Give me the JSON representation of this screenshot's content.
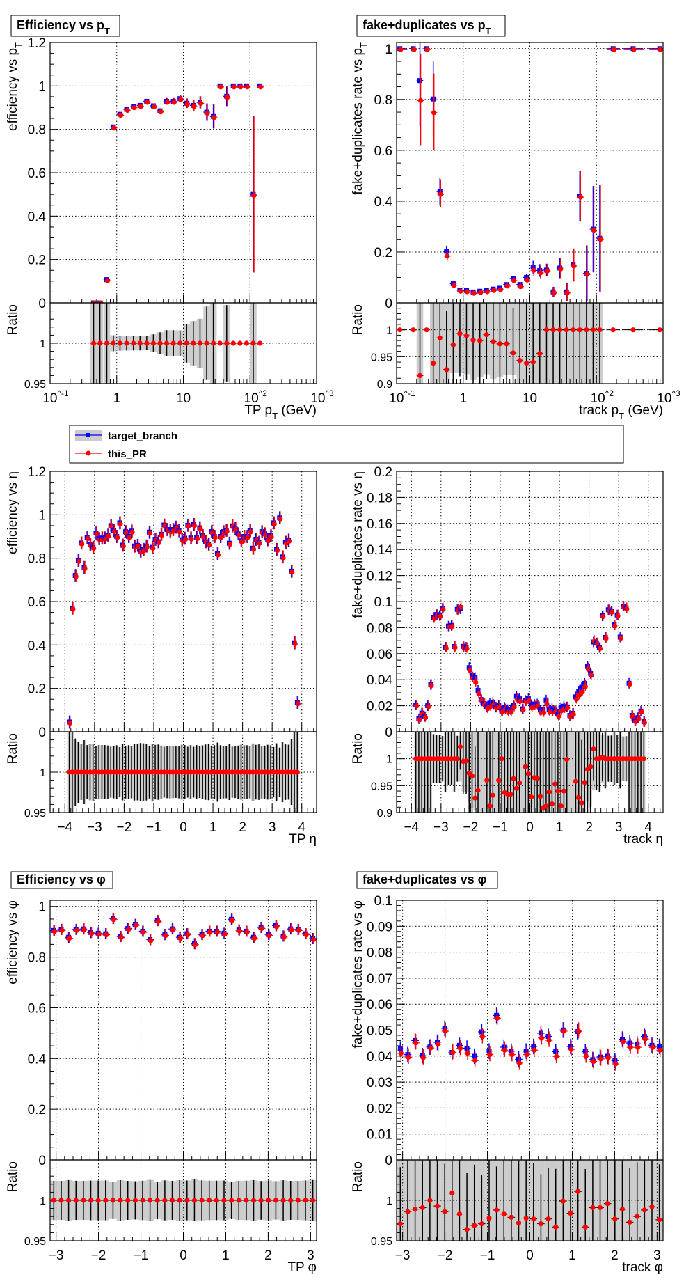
{
  "legend": {
    "entries": [
      {
        "label": "target_branch",
        "color": "#0000ff",
        "band_color": "#cccccc",
        "marker": "square"
      },
      {
        "label": "this_PR",
        "color": "#ff0000",
        "marker": "circle"
      }
    ]
  },
  "colors": {
    "target": "#0000ff",
    "this_PR": "#ff0000",
    "band": "#cccccc",
    "ratio_error": "#000000"
  },
  "chart_data": [
    {
      "type": "scatter",
      "title": {
        "text": "Efficiency vs p",
        "sub": "T"
      },
      "ylabel": {
        "text": "efficiency vs p",
        "sub": "T"
      },
      "xlabel": {
        "text": "TP p",
        "sub": "T",
        "after": " (GeV)"
      },
      "ratio_ylabel": "Ratio",
      "xscale": "log",
      "xlim": [
        0.1,
        1000
      ],
      "xticks": [
        0.1,
        1,
        10,
        100,
        1000
      ],
      "xtick_labels": [
        "10^-1",
        "1",
        "10",
        "10^2",
        "10^3"
      ],
      "ylim": [
        0,
        1.2
      ],
      "yticks": [
        0,
        0.2,
        0.4,
        0.6,
        0.8,
        1,
        1.2
      ],
      "ytick_labels": [
        "0",
        "0.2",
        "0.4",
        "0.6",
        "0.8",
        "1",
        "1.2"
      ],
      "ratio_ylim": [
        0.95,
        1.05
      ],
      "ratio_yticks": [
        0.95,
        1
      ],
      "ratio_ytick_labels": [
        "0.95",
        "1"
      ],
      "grid": true,
      "x": [
        0.45,
        0.56,
        0.71,
        0.89,
        1.12,
        1.41,
        1.78,
        2.24,
        2.82,
        3.55,
        4.47,
        5.62,
        7.08,
        8.91,
        11.2,
        14.1,
        17.8,
        22.4,
        28.2,
        35.5,
        44.7,
        56.2,
        70.8,
        89.1,
        112,
        141
      ],
      "this_PR": [
        0,
        0,
        0.107,
        0.811,
        0.869,
        0.892,
        0.904,
        0.91,
        0.929,
        0.908,
        0.885,
        0.929,
        0.929,
        0.941,
        0.92,
        0.91,
        0.924,
        0.879,
        0.859,
        1,
        0.952,
        1,
        1,
        1,
        0.5,
        1
      ],
      "err": [
        0,
        0,
        0.006,
        0.008,
        0.008,
        0.008,
        0.008,
        0.008,
        0.008,
        0.01,
        0.012,
        0.015,
        0.015,
        0.015,
        0.022,
        0.025,
        0.028,
        0.04,
        0.055,
        0,
        0.045,
        0,
        0,
        0,
        0.36,
        0
      ],
      "ratio": [
        1,
        1,
        1,
        1,
        1,
        1,
        1,
        1,
        1,
        1,
        1,
        1,
        1,
        1,
        1,
        1,
        1,
        1,
        1,
        1,
        1,
        1,
        1,
        1,
        1,
        1
      ]
    },
    {
      "type": "scatter",
      "title": {
        "text": "fake+duplicates vs p",
        "sub": "T"
      },
      "ylabel": {
        "text": "fake+duplicates rate vs p",
        "sub": "T"
      },
      "xlabel": {
        "text": "track p",
        "sub": "T",
        "after": " (GeV)"
      },
      "ratio_ylabel": "Ratio",
      "xscale": "log",
      "xlim": [
        0.1,
        1000
      ],
      "xticks": [
        0.1,
        1,
        10,
        100,
        1000
      ],
      "xtick_labels": [
        "10^-1",
        "1",
        "10",
        "10^2",
        "10^3"
      ],
      "ylim": [
        0,
        1.024
      ],
      "yticks": [
        0,
        0.2,
        0.4,
        0.6,
        0.8,
        1
      ],
      "ytick_labels": [
        "0",
        "0.2",
        "0.4",
        "0.6",
        "0.8",
        "1"
      ],
      "ratio_ylim": [
        0.9,
        1.05
      ],
      "ratio_yticks": [
        0.9,
        0.95,
        1
      ],
      "ratio_ytick_labels": [
        "0.9",
        "0.95",
        "1"
      ],
      "grid": true,
      "x": [
        0.112,
        0.178,
        0.224,
        0.282,
        0.355,
        0.447,
        0.562,
        0.708,
        0.891,
        1.12,
        1.41,
        1.78,
        2.24,
        2.82,
        3.55,
        4.47,
        5.62,
        7.08,
        8.91,
        11.2,
        14.1,
        17.8,
        22.4,
        28.2,
        35.5,
        44.7,
        56.2,
        70.8,
        89.1,
        112,
        178,
        355,
        891
      ],
      "this_PR": [
        1,
        1,
        0.8,
        1,
        0.752,
        0.431,
        0.188,
        0.073,
        0.05,
        0.048,
        0.042,
        0.045,
        0.048,
        0.053,
        0.056,
        0.07,
        0.092,
        0.068,
        0.094,
        0.132,
        0.122,
        0.129,
        0.043,
        0.137,
        0.043,
        0.149,
        0.42,
        0.116,
        0.29,
        0.254,
        1,
        1,
        1
      ],
      "err": [
        0,
        0,
        0.18,
        0,
        0.15,
        0.055,
        0.022,
        0.006,
        0.004,
        0.004,
        0.004,
        0.004,
        0.004,
        0.005,
        0.005,
        0.006,
        0.008,
        0.01,
        0.012,
        0.025,
        0.025,
        0.025,
        0.02,
        0.04,
        0.035,
        0.065,
        0.1,
        0.11,
        0.17,
        0.21,
        0,
        0,
        0
      ],
      "ratio": [
        1,
        1,
        0.915,
        1,
        0.938,
        0.985,
        0.926,
        0.972,
        0.993,
        0.989,
        0.981,
        0.98,
        0.991,
        0.978,
        0.974,
        0.974,
        0.957,
        0.943,
        0.938,
        0.94,
        0.956,
        1,
        1,
        1,
        1,
        1,
        1,
        1,
        1,
        1,
        1,
        1,
        1
      ]
    },
    {
      "type": "scatter",
      "ylabel": {
        "text": "efficiency vs  η",
        "sub": ""
      },
      "xlabel": {
        "text": "TP η",
        "sub": "",
        "after": ""
      },
      "ratio_ylabel": "Ratio",
      "xscale": "linear",
      "xlim": [
        -4.5,
        4.5
      ],
      "xticks": [
        -4,
        -3,
        -2,
        -1,
        0,
        1,
        2,
        3,
        4
      ],
      "xtick_labels": [
        "−4",
        "−3",
        "−2",
        "−1",
        "0",
        "1",
        "2",
        "3",
        "4"
      ],
      "ylim": [
        0,
        1.2
      ],
      "yticks": [
        0,
        0.2,
        0.4,
        0.6,
        0.8,
        1,
        1.2
      ],
      "ytick_labels": [
        "0",
        "0.2",
        "0.4",
        "0.6",
        "0.8",
        "1",
        "1.2"
      ],
      "ratio_ylim": [
        0.95,
        1.05
      ],
      "ratio_yticks": [
        0.95,
        1
      ],
      "ratio_ytick_labels": [
        "0.95",
        "1"
      ],
      "grid": true,
      "x_bin_width": 0.1,
      "x_first": -3.85,
      "this_PR": [
        0.045,
        0.57,
        0.72,
        0.79,
        0.87,
        0.757,
        0.895,
        0.862,
        0.85,
        0.916,
        0.89,
        0.893,
        0.893,
        0.906,
        0.95,
        0.927,
        0.9,
        0.963,
        0.86,
        0.922,
        0.9,
        0.925,
        0.856,
        0.859,
        0.833,
        0.84,
        0.856,
        0.92,
        0.85,
        0.887,
        0.876,
        0.91,
        0.953,
        0.932,
        0.926,
        0.932,
        0.943,
        0.926,
        0.885,
        0.892,
        0.952,
        0.893,
        0.955,
        0.895,
        0.94,
        0.903,
        0.876,
        0.865,
        0.922,
        0.9,
        0.82,
        0.9,
        0.922,
        0.929,
        0.869,
        0.949,
        0.936,
        0.912,
        0.88,
        0.9,
        0.9,
        0.926,
        0.846,
        0.887,
        0.873,
        0.922,
        0.912,
        0.885,
        0.903,
        0.963,
        0.84,
        0.986,
        0.806,
        0.873,
        0.883,
        0.74,
        0.41,
        0.134
      ],
      "err": 0.03,
      "ratio": [
        1,
        1,
        1,
        1,
        1,
        1,
        1,
        1,
        1,
        1,
        1,
        1,
        1,
        1,
        1,
        1,
        1,
        1,
        1,
        1,
        1,
        1,
        1,
        1,
        1,
        1,
        1,
        1,
        1,
        1,
        1,
        1,
        1,
        1,
        1,
        1,
        1,
        1,
        1,
        1,
        1,
        1,
        1,
        1,
        1,
        1,
        1,
        1,
        1,
        1,
        1,
        1,
        1,
        1,
        1,
        1,
        1,
        1,
        1,
        1,
        1,
        1,
        1,
        1,
        1,
        1,
        1,
        1,
        1,
        1,
        1,
        1,
        1,
        1,
        1,
        1,
        1,
        1
      ]
    },
    {
      "type": "scatter",
      "ylabel": {
        "text": "fake+duplicates rate vs  η",
        "sub": ""
      },
      "xlabel": {
        "text": "track  η",
        "sub": "",
        "after": ""
      },
      "ratio_ylabel": "Ratio",
      "xscale": "linear",
      "xlim": [
        -4.5,
        4.5
      ],
      "xticks": [
        -4,
        -3,
        -2,
        -1,
        0,
        1,
        2,
        3,
        4
      ],
      "xtick_labels": [
        "−4",
        "−3",
        "−2",
        "−1",
        "0",
        "1",
        "2",
        "3",
        "4"
      ],
      "ylim": [
        0,
        0.2
      ],
      "yticks": [
        0,
        0.02,
        0.04,
        0.06,
        0.08,
        0.1,
        0.12,
        0.14,
        0.16,
        0.18,
        0.2
      ],
      "ytick_labels": [
        "0",
        "0.02",
        "0.04",
        "0.06",
        "0.08",
        "0.1",
        "0.12",
        "0.14",
        "0.16",
        "0.18",
        "0.2"
      ],
      "ratio_ylim": [
        0.9,
        1.05
      ],
      "ratio_yticks": [
        0.9,
        0.95,
        1
      ],
      "ratio_ytick_labels": [
        "0.9",
        "0.95",
        "1"
      ],
      "grid": true,
      "x_bin_width": 0.1,
      "x_first": -3.85,
      "this_PR": [
        0.0206,
        0.01,
        0.0144,
        0.0117,
        0.02,
        0.0363,
        0.0878,
        0.09,
        0.0893,
        0.0948,
        0.065,
        0.0812,
        0.0817,
        0.0655,
        0.094,
        0.0965,
        0.0653,
        0.0647,
        0.048,
        0.042,
        0.0388,
        0.03,
        0.0248,
        0.0216,
        0.0185,
        0.0201,
        0.021,
        0.0189,
        0.0197,
        0.0159,
        0.0176,
        0.0159,
        0.0159,
        0.0197,
        0.0257,
        0.0242,
        0.0176,
        0.0238,
        0.0248,
        0.0191,
        0.0206,
        0.0206,
        0.0155,
        0.0155,
        0.0223,
        0.0159,
        0.0163,
        0.0159,
        0.0127,
        0.017,
        0.0185,
        0.0191,
        0.0125,
        0.0142,
        0.0257,
        0.029,
        0.0314,
        0.0356,
        0.0492,
        0.0441,
        0.0702,
        0.0683,
        0.0647,
        0.0893,
        0.0725,
        0.0937,
        0.0927,
        0.0821,
        0.0897,
        0.0727,
        0.0965,
        0.0952,
        0.0373,
        0.0125,
        0.0085,
        0.0108,
        0.0159,
        0.0078
      ],
      "err": 0.004,
      "ratio": [
        1,
        1,
        1,
        1,
        1,
        1,
        1,
        1,
        1,
        1,
        1,
        1,
        1,
        1,
        1,
        1.022,
        0.995,
        0.996,
        0.973,
        0.968,
        0.927,
        0.941,
        null,
        null,
        0.96,
        0.912,
        0.932,
        null,
        0.96,
        1,
        0.937,
        0.934,
        0.934,
        0.963,
        0.945,
        0.955,
        null,
        0.985,
        0.972,
        0.929,
        0.965,
        0.963,
        0.93,
        0.909,
        0.912,
        0.938,
        0.916,
        0.953,
        0.94,
        0.912,
        0.94,
        0.999,
        null,
        null,
        0.958,
        0.928,
        0.918,
        0.956,
        0.98,
        0.985,
        1.018,
        1,
        1,
        1.003,
        1,
        1,
        1,
        1,
        1,
        1,
        1,
        1,
        1,
        1,
        1,
        1,
        1,
        1
      ]
    },
    {
      "type": "scatter",
      "title": {
        "text": "Efficiency vs φ",
        "sub": ""
      },
      "ylabel": {
        "text": "efficiency vs  φ",
        "sub": ""
      },
      "xlabel": {
        "text": "TP φ",
        "sub": "",
        "after": ""
      },
      "ratio_ylabel": "Ratio",
      "xscale": "linear",
      "xlim": [
        -3.1416,
        3.1416
      ],
      "xticks": [
        -3,
        -2,
        -1,
        0,
        1,
        2,
        3
      ],
      "xtick_labels": [
        "−3",
        "−2",
        "−1",
        "0",
        "1",
        "2",
        "3"
      ],
      "ylim": [
        0,
        1.024
      ],
      "yticks": [
        0,
        0.2,
        0.4,
        0.6,
        0.8,
        1
      ],
      "ytick_labels": [
        "0",
        "0.2",
        "0.4",
        "0.6",
        "0.8",
        "1"
      ],
      "ratio_ylim": [
        0.95,
        1.05
      ],
      "ratio_yticks": [
        0.95,
        1
      ],
      "ratio_ytick_labels": [
        "0.95",
        "1"
      ],
      "grid": true,
      "x_bin_width": 0.1745,
      "x_first": -3.054,
      "this_PR": [
        0.905,
        0.909,
        0.878,
        0.909,
        0.911,
        0.897,
        0.894,
        0.892,
        0.952,
        0.881,
        0.913,
        0.929,
        0.902,
        0.869,
        0.944,
        0.889,
        0.911,
        0.878,
        0.892,
        0.853,
        0.889,
        0.902,
        0.902,
        0.894,
        0.949,
        0.907,
        0.902,
        0.878,
        0.917,
        0.889,
        0.924,
        0.883,
        0.911,
        0.909,
        0.892,
        0.873
      ],
      "err": 0.022,
      "ratio": [
        1,
        1,
        1,
        1,
        1,
        1,
        1,
        1,
        1,
        1,
        1,
        1,
        1,
        1,
        1,
        1,
        1,
        1,
        1,
        1,
        1,
        1,
        1,
        1,
        1,
        1,
        1,
        1,
        1,
        1,
        1,
        1,
        1,
        1,
        1,
        1
      ]
    },
    {
      "type": "scatter",
      "title": {
        "text": "fake+duplicates vs φ",
        "sub": ""
      },
      "ylabel": {
        "text": "fake+duplicates rate vs  φ",
        "sub": ""
      },
      "xlabel": {
        "text": "track  φ",
        "sub": "",
        "after": ""
      },
      "ratio_ylabel": "Ratio",
      "xscale": "linear",
      "xlim": [
        -3.1416,
        3.1416
      ],
      "xticks": [
        -3,
        -2,
        -1,
        0,
        1,
        2,
        3
      ],
      "xtick_labels": [
        "−3",
        "−2",
        "−1",
        "0",
        "1",
        "2",
        "3"
      ],
      "ylim": [
        0,
        0.1
      ],
      "yticks": [
        0,
        0.01,
        0.02,
        0.03,
        0.04,
        0.05,
        0.06,
        0.07,
        0.08,
        0.09,
        0.1
      ],
      "ytick_labels": [
        "0",
        "0.01",
        "0.02",
        "0.03",
        "0.04",
        "0.05",
        "0.06",
        "0.07",
        "0.08",
        "0.09",
        "0.1"
      ],
      "ratio_ylim": [
        0.95,
        1.05
      ],
      "ratio_yticks": [
        0.95,
        1
      ],
      "ratio_ytick_labels": [
        "0.95",
        "1"
      ],
      "grid": true,
      "x_bin_width": 0.1745,
      "x_first": -3.054,
      "this_PR": [
        0.0415,
        0.04,
        0.0455,
        0.0398,
        0.0435,
        0.045,
        0.05,
        0.0418,
        0.0434,
        0.0415,
        0.0387,
        0.0479,
        0.041,
        0.055,
        0.0427,
        0.041,
        0.0377,
        0.041,
        0.0427,
        0.0474,
        0.0465,
        0.0403,
        0.05,
        0.043,
        0.05,
        0.0404,
        0.0383,
        0.0393,
        0.0398,
        0.0374,
        0.046,
        0.0438,
        0.0438,
        0.047,
        0.0438,
        0.0427
      ],
      "err": 0.003,
      "ratio": [
        0.971,
        0.986,
        0.989,
        0.991,
        1,
        0.993,
        0.986,
        1.009,
        0.983,
        0.964,
        0.969,
        0.971,
        0.978,
        0.988,
        0.983,
        0.979,
        0.972,
        0.978,
        0.977,
        0.971,
        0.977,
        0.967,
        0.999,
        0.984,
        1.011,
        0.967,
        0.991,
        0.991,
        0.996,
        0.977,
        0.989,
        0.973,
        0.98,
        0.988,
        0.992,
        0.976
      ]
    }
  ]
}
